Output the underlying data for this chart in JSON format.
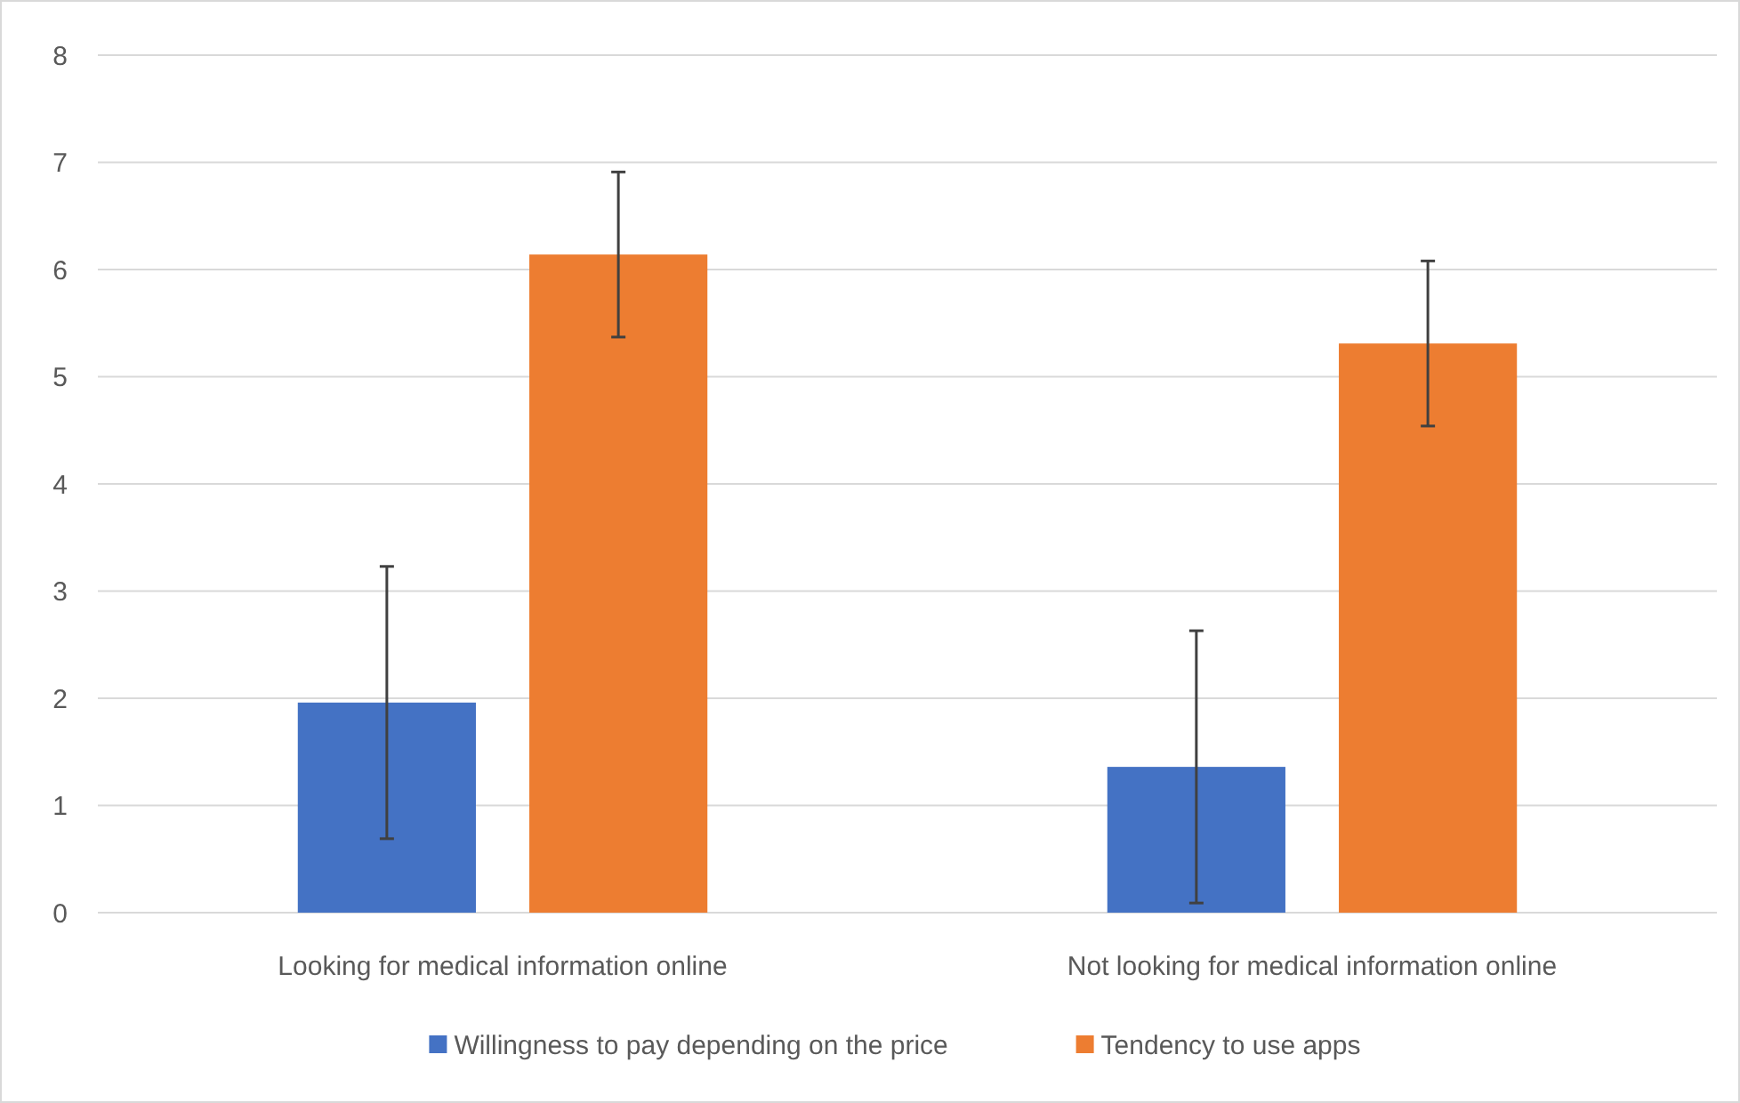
{
  "chart_data": {
    "type": "bar",
    "categories": [
      "Looking for medical information online",
      "Not looking for medical information online"
    ],
    "series": [
      {
        "name": "Willingness to pay depending on the price",
        "color": "#4472c4",
        "values": [
          1.96,
          1.36
        ],
        "errors": [
          1.27,
          1.27
        ]
      },
      {
        "name": "Tendency to use apps",
        "color": "#ed7d31",
        "values": [
          6.14,
          5.31
        ],
        "errors": [
          0.77,
          0.77
        ]
      }
    ],
    "ylim": [
      0,
      8
    ],
    "yticks": [
      0,
      1,
      2,
      3,
      4,
      5,
      6,
      7,
      8
    ],
    "grid": "y",
    "legend": "bottom"
  }
}
